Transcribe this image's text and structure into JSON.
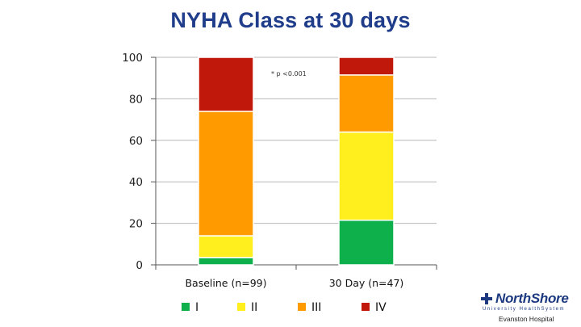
{
  "chart_data": {
    "type": "bar",
    "stacked": true,
    "title": "NYHA Class at 30 days",
    "categories": [
      "Baseline (n=99)",
      "30 Day (n=47)"
    ],
    "series": [
      {
        "name": "I",
        "color": "#0db04b",
        "values": [
          3.5,
          21.5
        ]
      },
      {
        "name": "II",
        "color": "#ffef1f",
        "values": [
          10.5,
          42.5
        ]
      },
      {
        "name": "III",
        "color": "#ff9a00",
        "values": [
          60,
          27.5
        ]
      },
      {
        "name": "IV",
        "color": "#c0180b",
        "values": [
          26,
          8.5
        ]
      }
    ],
    "ylim": [
      0,
      100
    ],
    "yticks": [
      0,
      20,
      40,
      60,
      80,
      100
    ],
    "grid": true,
    "legend_position": "bottom",
    "annotation": "* p <0.001"
  },
  "logo": {
    "name": "NorthShore",
    "subtitle": "University HealthSystem",
    "hospital": "Evanston Hospital"
  }
}
